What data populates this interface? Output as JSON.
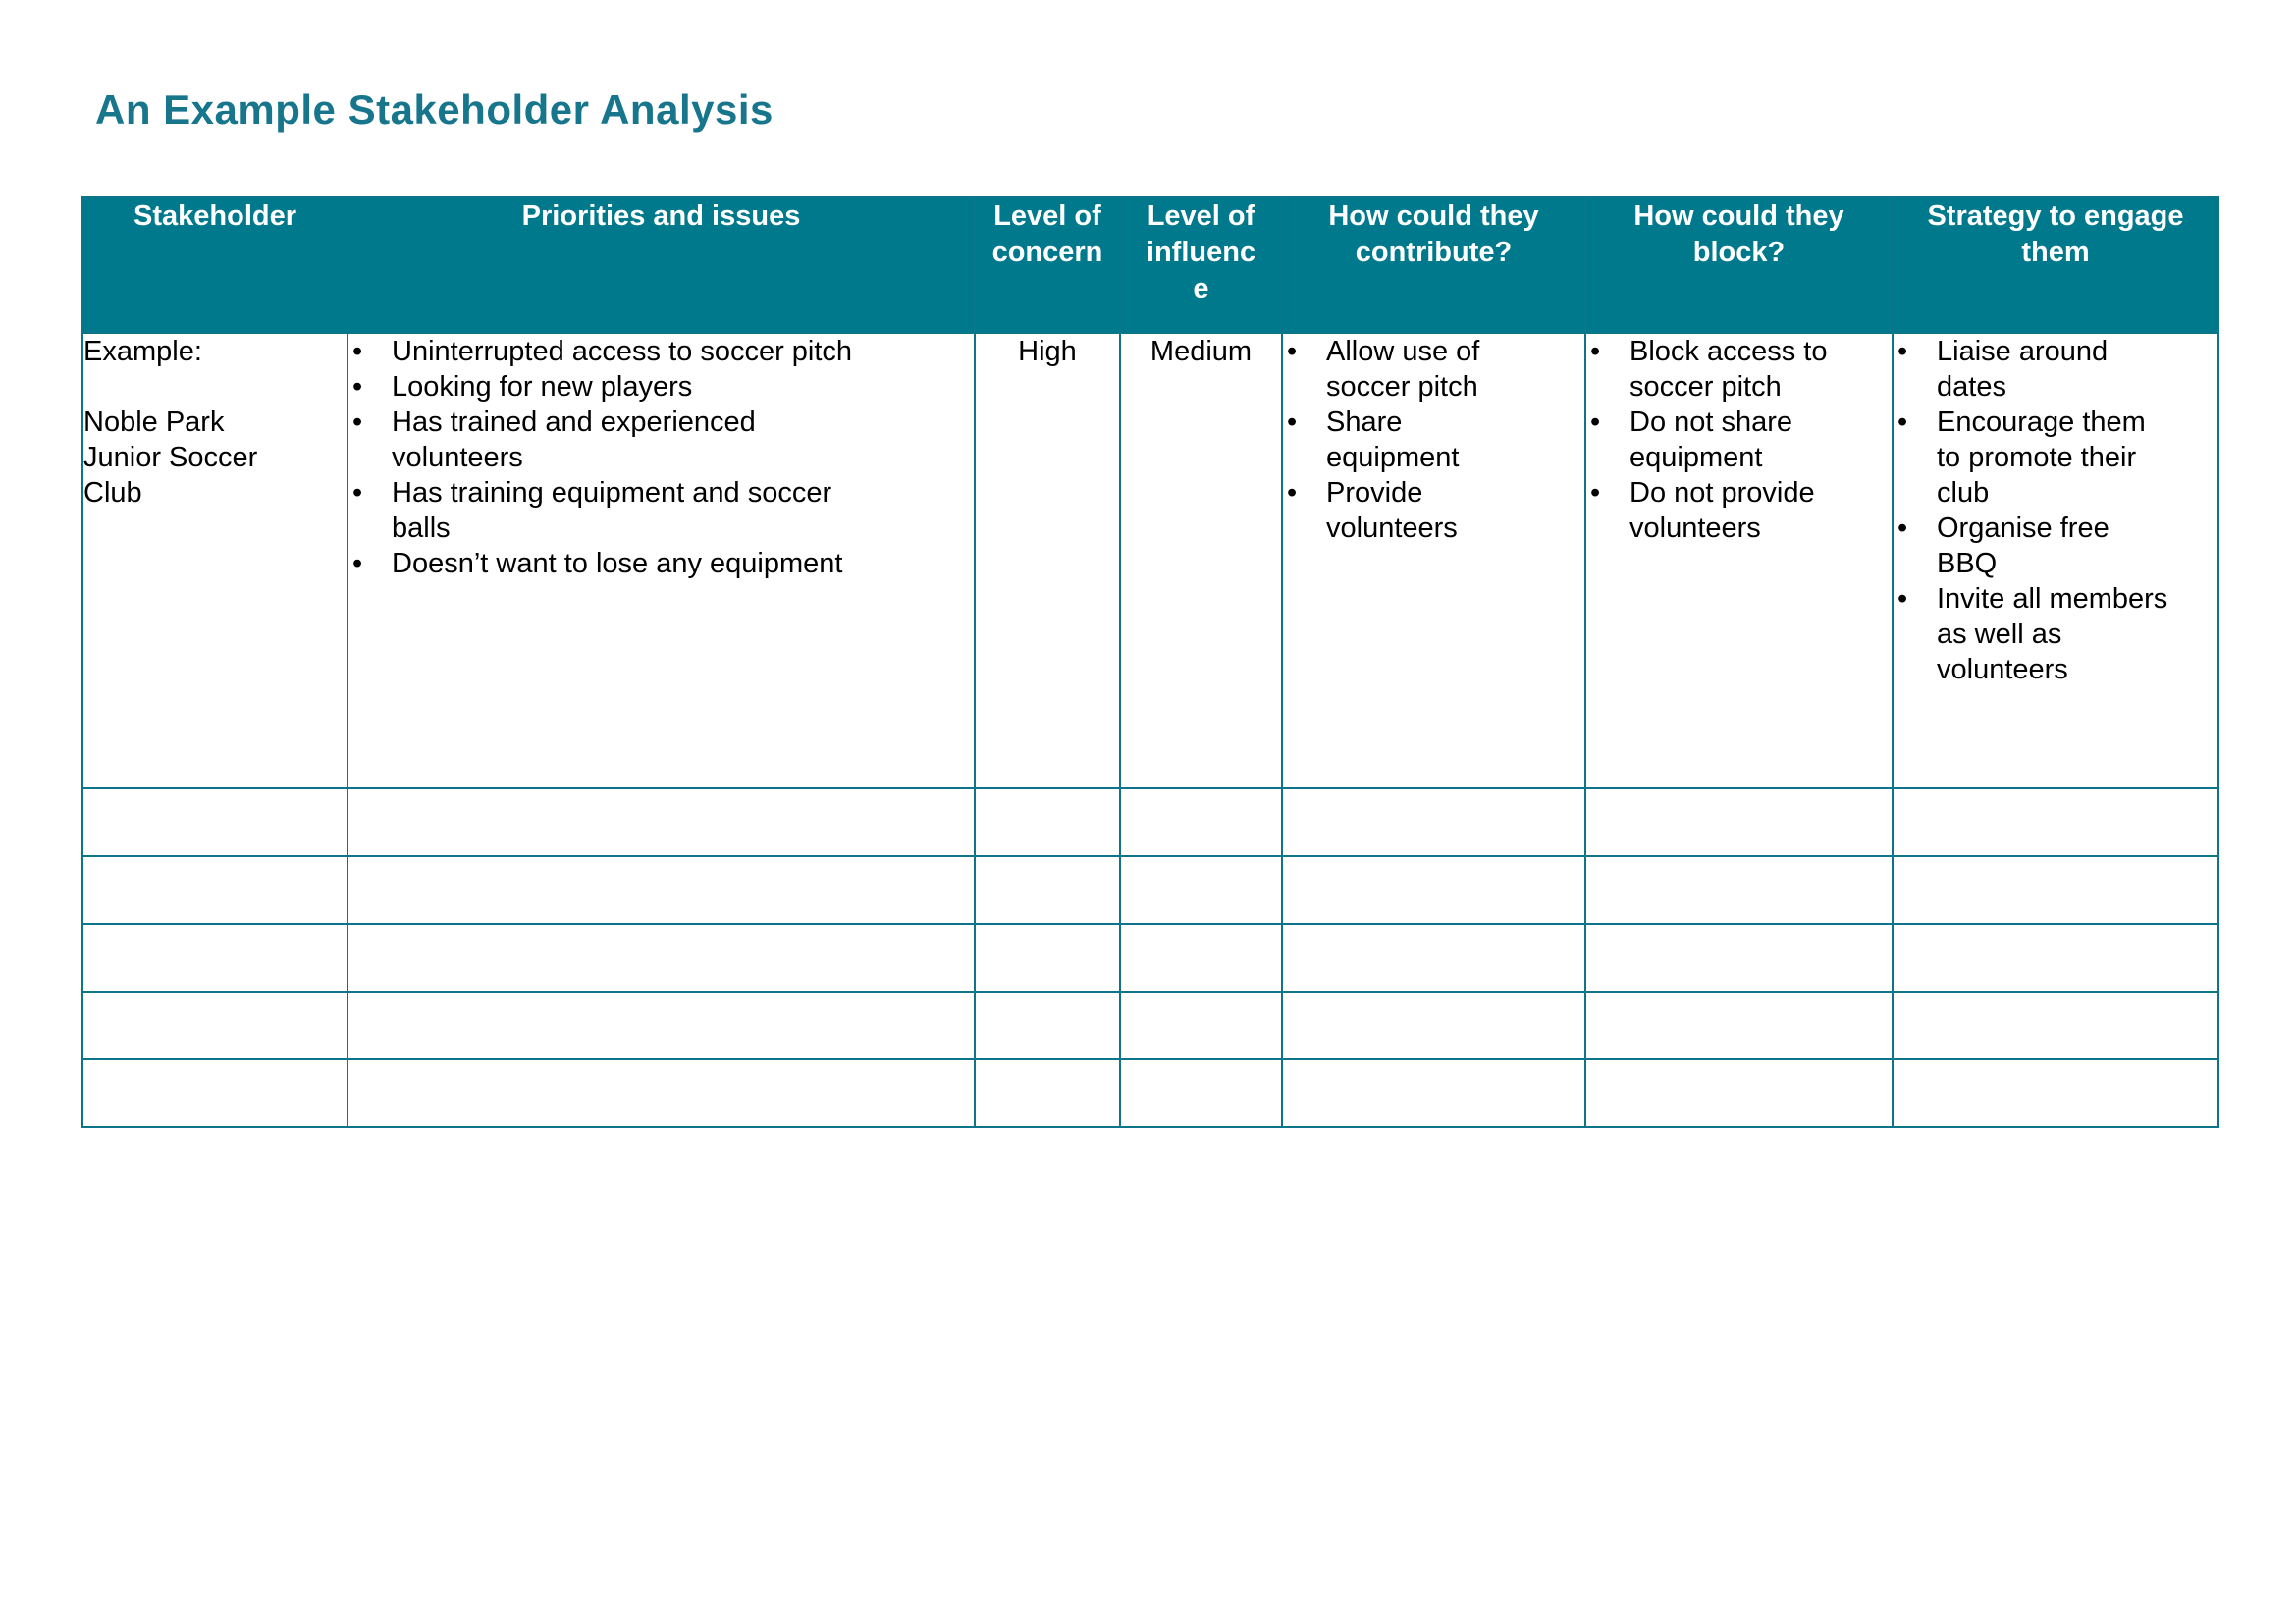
{
  "page": {
    "title": "An Example Stakeholder Analysis"
  },
  "colors": {
    "accent_teal": "#00798C",
    "border_teal": "#0C7589",
    "title_teal": "#17768C",
    "header_text": "#FFFFFF",
    "body_text": "#000000"
  },
  "table": {
    "bullet_glyph": "•",
    "headers": [
      {
        "label": "Stakeholder"
      },
      {
        "label": "Priorities and issues"
      },
      {
        "label": "Level of\nconcern"
      },
      {
        "label": "Level of\ninfluenc\ne"
      },
      {
        "label": "How could they\ncontribute?"
      },
      {
        "label": "How could they\nblock?"
      },
      {
        "label": "Strategy to engage\nthem"
      }
    ],
    "example_row": {
      "stakeholder_intro": "Example:",
      "stakeholder_name": "Noble Park\nJunior Soccer\nClub",
      "priorities": [
        "Uninterrupted access to soccer pitch",
        "Looking for new players",
        "Has trained and experienced\nvolunteers",
        "Has training equipment and soccer\nballs",
        "Doesn’t want to lose any equipment"
      ],
      "level_of_concern": "High",
      "level_of_influence": "Medium",
      "contribute": [
        "Allow use of\nsoccer pitch",
        "Share\nequipment",
        "Provide\nvolunteers"
      ],
      "block": [
        "Block access to\nsoccer pitch",
        "Do not share\nequipment",
        "Do not provide\nvolunteers"
      ],
      "strategy": [
        "Liaise around\ndates",
        "Encourage them\nto promote their\nclub",
        "Organise free\nBBQ",
        "Invite all members\nas well as\nvolunteers"
      ]
    },
    "empty_row_count": 5
  }
}
